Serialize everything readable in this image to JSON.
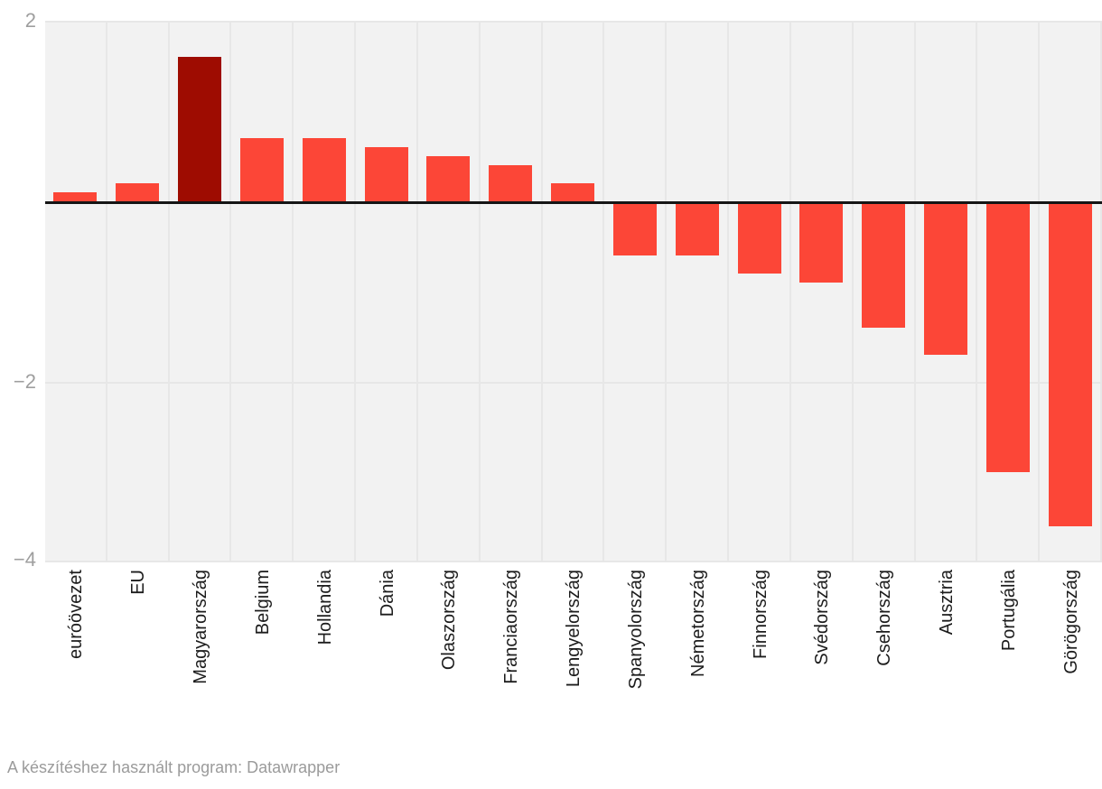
{
  "chart_data": {
    "type": "bar",
    "categories": [
      "euróövezet",
      "EU",
      "Magyarország",
      "Belgium",
      "Hollandia",
      "Dánia",
      "Olaszország",
      "Franciaország",
      "Lengyelország",
      "Spanyolország",
      "Németország",
      "Finnország",
      "Svédország",
      "Csehország",
      "Ausztria",
      "Portugália",
      "Görögország"
    ],
    "values": [
      0.1,
      0.2,
      1.6,
      0.7,
      0.7,
      0.6,
      0.5,
      0.4,
      0.2,
      -0.6,
      -0.6,
      -0.8,
      -0.9,
      -1.4,
      -1.7,
      -3.0,
      -3.6
    ],
    "highlight_category": "Magyarország",
    "title": "",
    "xlabel": "",
    "ylabel": "",
    "ylim": [
      -4,
      2
    ],
    "yticks": [
      {
        "value": 2,
        "label": "2"
      },
      {
        "value": -2,
        "label": "−2"
      },
      {
        "value": -4,
        "label": "−4"
      }
    ],
    "grid_values": [
      2,
      -2,
      -4
    ],
    "zero_line": true,
    "grid": true,
    "legend": "none"
  },
  "colors": {
    "bar": "#fc4637",
    "highlight_bar": "#9e0c01",
    "plot_background": "#f2f2f2",
    "gridline": "#e7e7e7",
    "zero_line": "#151515",
    "tick_label": "#9e9e9e",
    "category_label": "#1c1c1c",
    "footer_text": "#9b9b9b"
  },
  "footer": {
    "text": "A készítéshez használt program: Datawrapper"
  }
}
